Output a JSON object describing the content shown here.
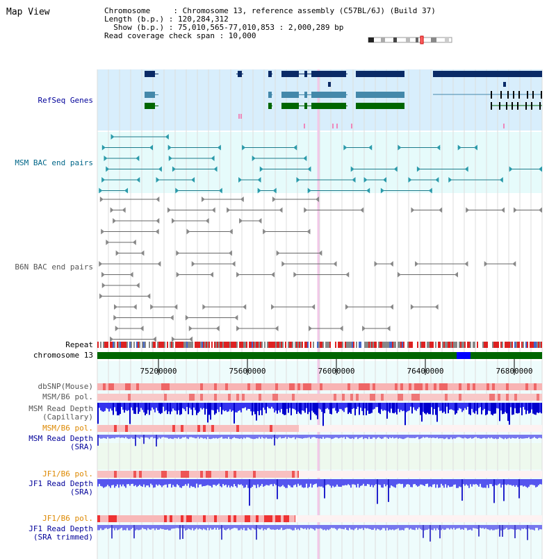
{
  "title": "Map View",
  "info": {
    "chromosome": "Chromosome     : Chromosome 13, reference assembly (C57BL/6J) (Build 37)",
    "length": "Length (b.p.) : 120,284,312",
    "show": "  Show (b.p.) : 75,010,565-77,010,853 : 2,000,289 bp",
    "span": "Read coverage check span : 10,000"
  },
  "tracks": {
    "refseq": "RefSeq Genes",
    "msm_bac": "MSM BAC end pairs",
    "b6n_bac": "B6N BAC end pairs",
    "repeat": "Repeat",
    "chrom": "chromosome 13",
    "dbsnp": "dbSNP(Mouse)",
    "msm_pol": "MSM/B6 pol.",
    "msm_depth_cap": "MSM Read Depth\n(Capillary)",
    "msm_pol2": "MSM/B6 pol.",
    "msm_depth_sra": "MSM Read Depth\n(SRA)",
    "jf1_pol": "JF1/B6 pol.",
    "jf1_depth_sra": "JF1 Read Depth\n(SRA)",
    "jf1_pol2": "JF1/B6 pol.",
    "jf1_depth_trim": "JF1 Read Depth\n(SRA trimmed)"
  },
  "ticks": [
    "75200000",
    "75600000",
    "76000000",
    "76400000",
    "76800000"
  ],
  "colors": {
    "refseq_bg": "#d8eefc",
    "msm_bg": "#e6fbfb",
    "gene_dark": "#0a2a66",
    "gene_mid": "#4488aa",
    "gene_green": "#006600",
    "label_blue": "#000099",
    "label_orange": "#dd8800",
    "chrom_green": "#006600"
  }
}
